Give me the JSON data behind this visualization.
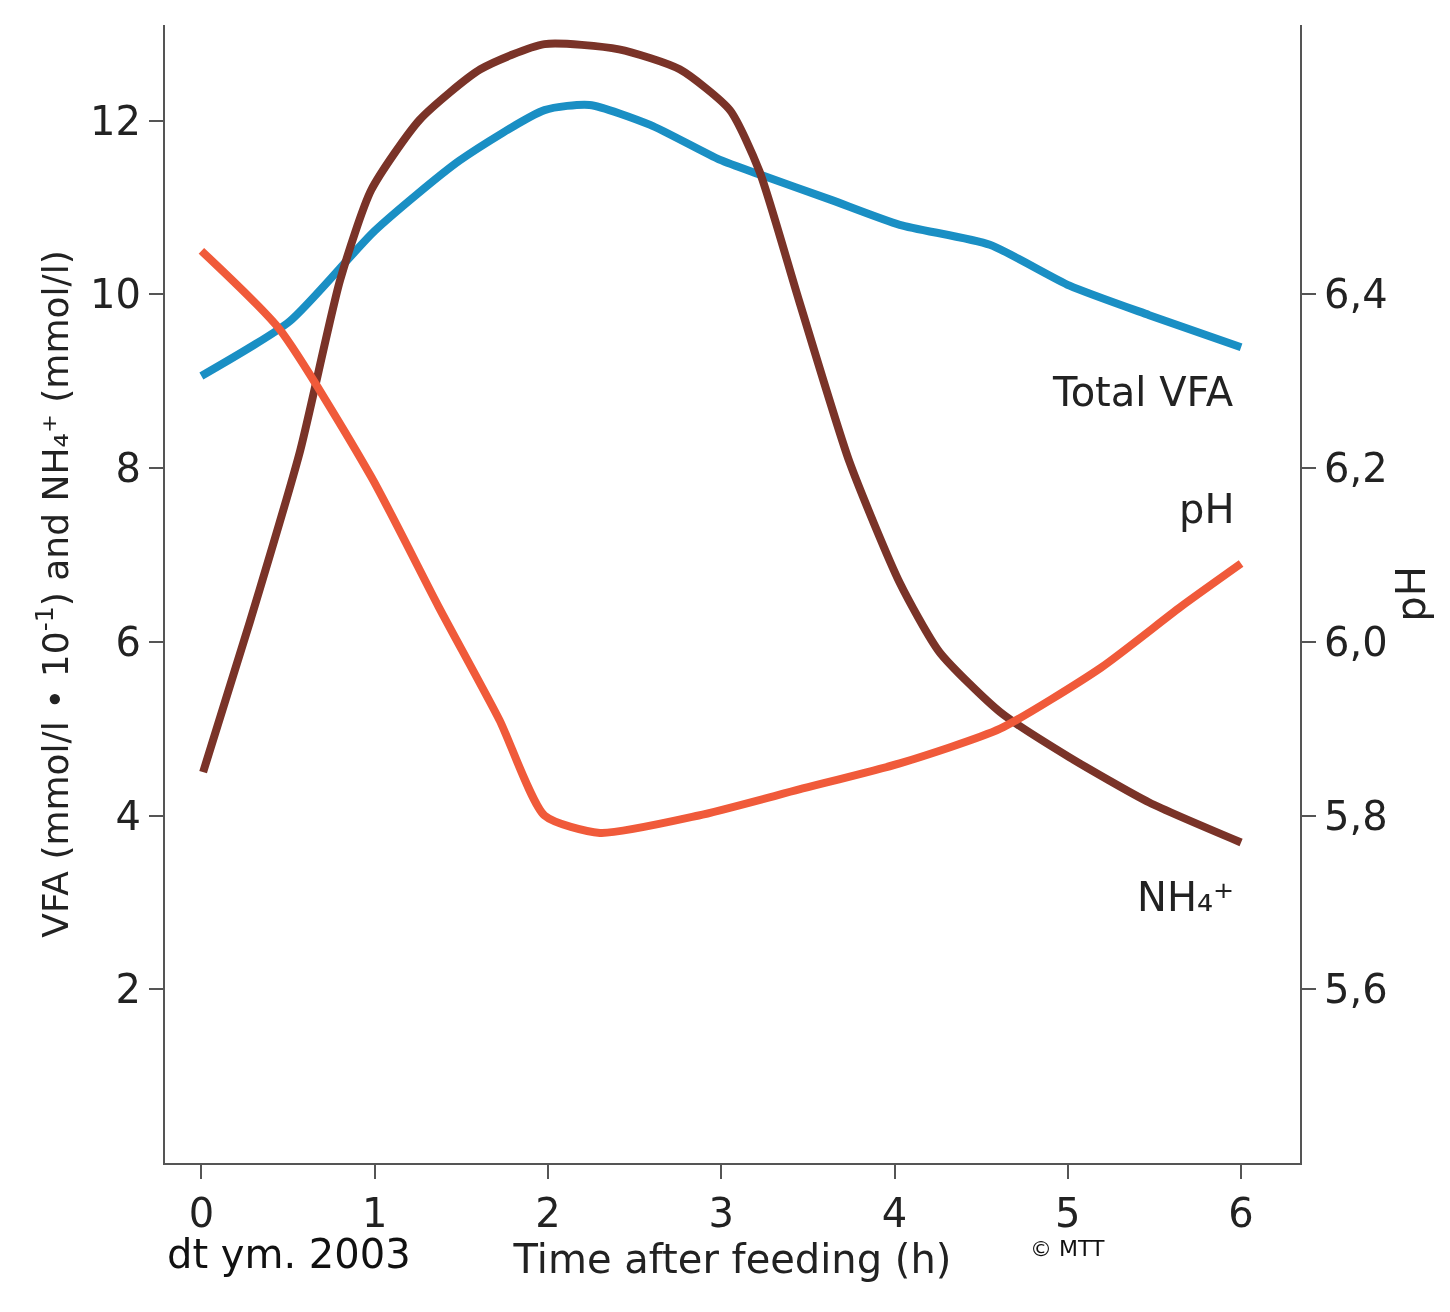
{
  "chart_data": {
    "type": "line",
    "xlabel": "Time after feeding (h)",
    "ylabel": "VFA (mmol/l • 10$^{-1}$) and NH₄⁺ (mmol/l)",
    "y2label": "pH",
    "xlim": [
      -0.21,
      6.34
    ],
    "xticks": [
      0,
      1,
      2,
      3,
      4,
      5,
      6
    ],
    "ylim": [
      0,
      13.1
    ],
    "yticks": [
      2,
      4,
      6,
      8,
      10,
      12
    ],
    "y2lim": [
      5.4,
      6.71
    ],
    "y2ticks": [
      {
        "value": 5.6,
        "label": "5,6"
      },
      {
        "value": 5.8,
        "label": "5,8"
      },
      {
        "value": 6.0,
        "label": "6,0"
      },
      {
        "value": 6.2,
        "label": "6,2"
      },
      {
        "value": 6.4,
        "label": "6,4"
      }
    ],
    "legend": false,
    "marker": "none",
    "line_style": "solid",
    "series": [
      {
        "name": "Total VFA",
        "color": "#1a8fc4",
        "x": [
          0,
          0.51,
          1.0,
          1.49,
          1.98,
          2.24,
          2.59,
          2.99,
          3.22,
          3.63,
          4.03,
          4.55,
          5.01,
          5.47,
          6.0
        ],
        "values": [
          9.06,
          9.69,
          10.73,
          11.54,
          12.12,
          12.18,
          11.95,
          11.55,
          11.38,
          11.09,
          10.8,
          10.57,
          10.1,
          9.76,
          9.39
        ]
      },
      {
        "name": "pH",
        "color": "#f05a3a",
        "axis": "y2",
        "x": [
          0,
          0.45,
          0.98,
          1.37,
          1.72,
          1.98,
          2.3,
          2.87,
          3.45,
          4.03,
          4.61,
          5.19,
          5.65,
          6.0
        ],
        "values": [
          6.45,
          6.36,
          6.19,
          6.04,
          5.91,
          5.8,
          5.78,
          5.8,
          5.83,
          5.86,
          5.9,
          5.97,
          6.04,
          6.09
        ]
      },
      {
        "name": "NH₄⁺",
        "color": "#7a3328",
        "x": [
          0.01,
          0.28,
          0.57,
          0.8,
          0.98,
          1.26,
          1.61,
          1.98,
          2.41,
          2.76,
          3.05,
          3.22,
          3.45,
          3.74,
          4.03,
          4.26,
          4.61,
          5.01,
          5.47,
          6.0
        ],
        "values": [
          4.5,
          6.23,
          8.2,
          10.16,
          11.2,
          12.01,
          12.59,
          12.88,
          12.82,
          12.59,
          12.12,
          11.42,
          9.92,
          8.07,
          6.68,
          5.88,
          5.19,
          4.67,
          4.15,
          3.69
        ]
      }
    ],
    "annotations": [
      "dt ym. 2003",
      "© MTT"
    ]
  }
}
